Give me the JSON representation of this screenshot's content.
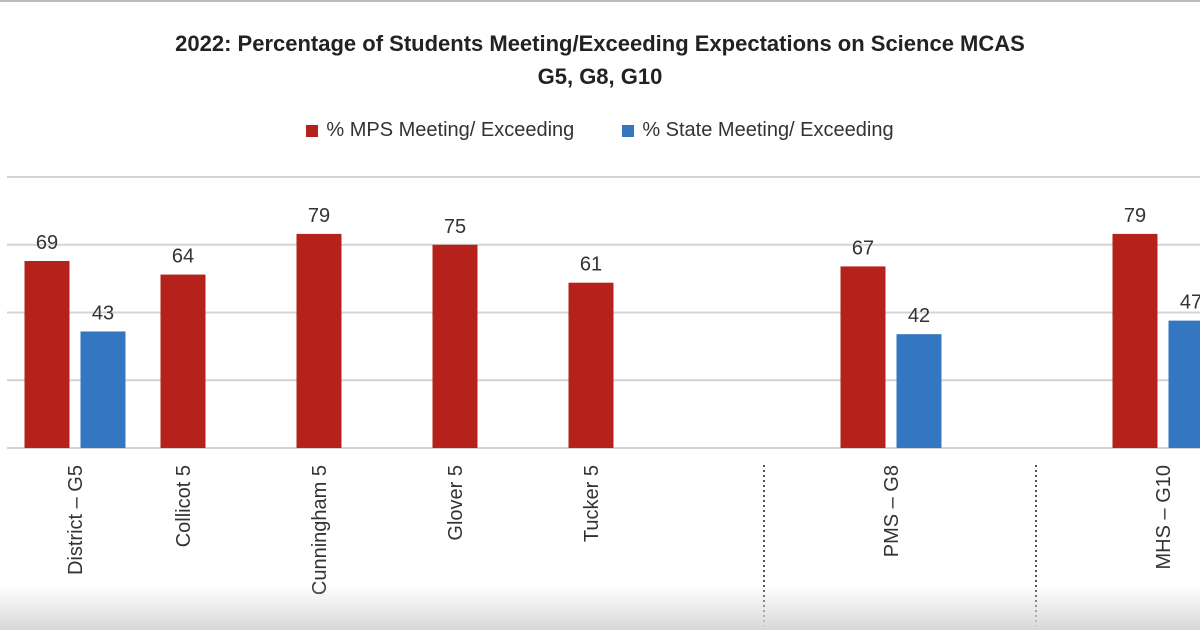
{
  "chart_data": {
    "type": "bar",
    "title": "2022: Percentage of Students Meeting/Exceeding Expectations on Science MCAS",
    "subtitle": "G5, G8, G10",
    "xlabel": "",
    "ylabel": "",
    "ylim": [
      0,
      100
    ],
    "grid": true,
    "legend_position": "top",
    "categories": [
      "District – G5",
      "Collicot 5",
      "Cunningham 5",
      "Glover 5",
      "Tucker 5",
      "",
      "PMS – G8",
      "",
      "MHS – G10"
    ],
    "separators": [
      5,
      7
    ],
    "series": [
      {
        "name": "% MPS Meeting/ Exceeding",
        "color": "#B5221B",
        "values": [
          69,
          64,
          79,
          75,
          61,
          null,
          67,
          null,
          79
        ]
      },
      {
        "name": "% State Meeting/ Exceeding",
        "color": "#3477C0",
        "values": [
          43,
          null,
          null,
          null,
          null,
          null,
          42,
          null,
          47
        ]
      }
    ]
  }
}
